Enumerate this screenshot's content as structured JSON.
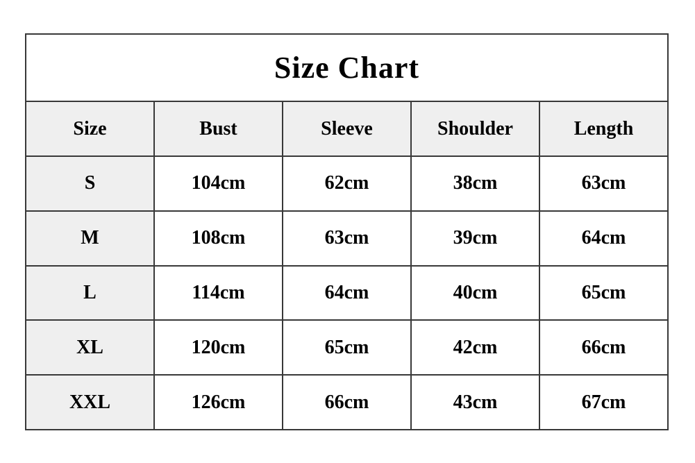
{
  "chart_data": {
    "type": "table",
    "title": "Size Chart",
    "columns": [
      "Size",
      "Bust",
      "Sleeve",
      "Shoulder",
      "Length"
    ],
    "rows": [
      [
        "S",
        "104cm",
        "62cm",
        "38cm",
        "63cm"
      ],
      [
        "M",
        "108cm",
        "63cm",
        "39cm",
        "64cm"
      ],
      [
        "L",
        "114cm",
        "64cm",
        "40cm",
        "65cm"
      ],
      [
        "XL",
        "120cm",
        "65cm",
        "42cm",
        "66cm"
      ],
      [
        "XXL",
        "126cm",
        "66cm",
        "43cm",
        "67cm"
      ]
    ],
    "layout_hints": {
      "header_bg": "#efefef",
      "first_column_bg": "#efefef",
      "body_bg": "#ffffff",
      "border_color": "#383838",
      "text_color": "#000000",
      "text_weight": "bold",
      "grid": true
    }
  }
}
